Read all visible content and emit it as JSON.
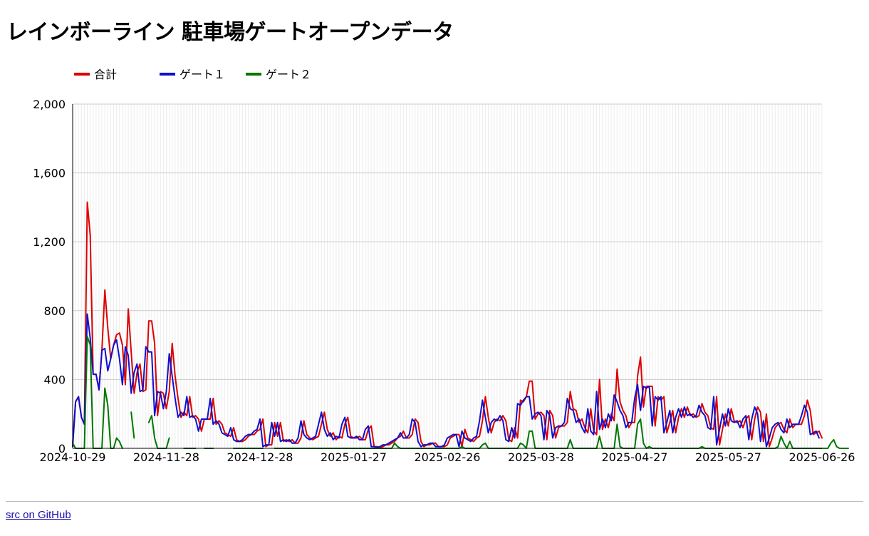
{
  "title": "レインボーライン 駐車場ゲートオープンデータ",
  "footer": {
    "link_text": "src on GitHub"
  },
  "colors": {
    "total": "#dd0000",
    "gate1": "#1010d0",
    "gate2": "#007700"
  },
  "chart_data": {
    "type": "line",
    "title": "レインボーライン 駐車場ゲートオープンデータ",
    "xlabel": "",
    "ylabel": "",
    "x_start": "2024-10-29",
    "x_end": "2025-06-26",
    "x_ticks": [
      "2024-10-29",
      "2024-11-28",
      "2024-12-28",
      "2025-01-27",
      "2025-02-26",
      "2025-03-28",
      "2025-04-27",
      "2025-05-27",
      "2025-06-26"
    ],
    "ylim": [
      0,
      2000
    ],
    "y_ticks": [
      0,
      400,
      800,
      1200,
      1600,
      2000
    ],
    "y_tick_labels": [
      "0",
      "400",
      "800",
      "1,200",
      "1,600",
      "2,000"
    ],
    "grid": true,
    "legend": "top-left",
    "series": [
      {
        "name": "合計",
        "color": "#dd0000",
        "values": [
          30,
          270,
          300,
          180,
          140,
          1430,
          1240,
          430,
          430,
          340,
          570,
          920,
          700,
          520,
          600,
          660,
          670,
          600,
          370,
          810,
          560,
          320,
          440,
          490,
          330,
          340,
          740,
          740,
          610,
          190,
          330,
          320,
          230,
          330,
          610,
          420,
          290,
          180,
          210,
          190,
          300,
          180,
          190,
          170,
          100,
          170,
          170,
          170,
          290,
          140,
          160,
          140,
          90,
          80,
          70,
          120,
          50,
          40,
          40,
          50,
          70,
          80,
          80,
          100,
          110,
          170,
          10,
          20,
          20,
          150,
          70,
          150,
          40,
          50,
          40,
          50,
          30,
          30,
          60,
          160,
          80,
          60,
          50,
          60,
          70,
          140,
          210,
          110,
          70,
          90,
          50,
          70,
          60,
          140,
          180,
          70,
          60,
          60,
          70,
          50,
          50,
          110,
          130,
          10,
          10,
          5,
          10,
          20,
          20,
          30,
          40,
          60,
          70,
          100,
          60,
          60,
          80,
          170,
          150,
          40,
          10,
          20,
          20,
          30,
          30,
          10,
          10,
          10,
          20,
          60,
          70,
          80,
          80,
          10,
          110,
          60,
          50,
          40,
          60,
          70,
          160,
          300,
          180,
          90,
          150,
          170,
          160,
          190,
          160,
          50,
          40,
          120,
          60,
          280,
          270,
          300,
          390,
          390,
          170,
          200,
          210,
          190,
          50,
          220,
          190,
          60,
          120,
          130,
          130,
          150,
          330,
          230,
          220,
          150,
          170,
          120,
          90,
          230,
          100,
          80,
          400,
          110,
          170,
          120,
          200,
          160,
          460,
          270,
          220,
          190,
          120,
          150,
          150,
          420,
          530,
          240,
          360,
          360,
          360,
          130,
          300,
          280,
          300,
          90,
          150,
          220,
          90,
          180,
          230,
          180,
          240,
          190,
          200,
          180,
          190,
          260,
          210,
          190,
          120,
          110,
          300,
          20,
          110,
          200,
          130,
          230,
          160,
          150,
          160,
          120,
          170,
          190,
          50,
          170,
          240,
          210,
          40,
          200,
          10,
          60,
          120,
          140,
          150,
          110,
          90,
          170,
          120,
          140,
          140,
          140,
          190,
          280,
          220,
          80,
          90,
          100,
          60
        ]
      },
      {
        "name": "ゲート１",
        "color": "#1010d0",
        "values": [
          10,
          270,
          300,
          180,
          140,
          780,
          640,
          430,
          430,
          340,
          570,
          580,
          450,
          520,
          600,
          630,
          520,
          370,
          590,
          540,
          320,
          440,
          490,
          330,
          340,
          590,
          560,
          560,
          190,
          330,
          320,
          230,
          330,
          550,
          420,
          290,
          180,
          210,
          190,
          300,
          180,
          190,
          170,
          100,
          170,
          170,
          170,
          290,
          140,
          160,
          140,
          90,
          80,
          70,
          120,
          50,
          40,
          40,
          50,
          70,
          80,
          80,
          100,
          110,
          170,
          10,
          20,
          20,
          150,
          70,
          150,
          40,
          50,
          40,
          50,
          30,
          30,
          60,
          160,
          80,
          60,
          50,
          60,
          70,
          140,
          210,
          110,
          70,
          90,
          50,
          70,
          60,
          140,
          180,
          70,
          60,
          60,
          70,
          50,
          50,
          110,
          130,
          10,
          10,
          5,
          10,
          20,
          20,
          30,
          40,
          50,
          60,
          90,
          60,
          60,
          80,
          170,
          150,
          40,
          10,
          20,
          20,
          30,
          30,
          10,
          10,
          10,
          20,
          60,
          70,
          80,
          80,
          10,
          100,
          60,
          50,
          40,
          60,
          70,
          160,
          280,
          180,
          90,
          150,
          170,
          160,
          190,
          160,
          50,
          40,
          120,
          60,
          260,
          250,
          280,
          300,
          300,
          170,
          200,
          210,
          190,
          50,
          220,
          190,
          60,
          120,
          130,
          130,
          150,
          290,
          230,
          220,
          150,
          170,
          120,
          90,
          230,
          100,
          80,
          330,
          110,
          170,
          120,
          200,
          160,
          310,
          270,
          220,
          190,
          120,
          150,
          150,
          290,
          370,
          220,
          360,
          350,
          360,
          130,
          300,
          280,
          300,
          90,
          150,
          220,
          90,
          180,
          230,
          180,
          240,
          190,
          200,
          180,
          190,
          250,
          210,
          190,
          120,
          110,
          300,
          20,
          110,
          200,
          130,
          230,
          160,
          150,
          160,
          120,
          170,
          190,
          50,
          170,
          240,
          200,
          40,
          160,
          10,
          60,
          120,
          140,
          150,
          110,
          90,
          170,
          120,
          140,
          140,
          140,
          190,
          250,
          210,
          80,
          90,
          100,
          60
        ]
      },
      {
        "name": "ゲート２",
        "color": "#007700",
        "values": [
          30,
          0,
          0,
          0,
          0,
          650,
          600,
          0,
          0,
          0,
          0,
          350,
          250,
          0,
          0,
          60,
          40,
          0,
          null,
          null,
          210,
          60,
          null,
          null,
          null,
          null,
          150,
          190,
          60,
          0,
          0,
          0,
          0,
          60,
          null,
          null,
          null,
          null,
          0,
          0,
          0,
          0,
          0,
          null,
          null,
          0,
          0,
          0,
          0,
          null,
          null,
          null,
          null,
          null,
          null,
          0,
          0,
          0,
          0,
          0,
          0,
          0,
          0,
          0,
          0,
          0,
          null,
          null,
          null,
          0,
          0,
          0,
          0,
          0,
          0,
          0,
          0,
          0,
          0,
          0,
          0,
          0,
          0,
          0,
          0,
          0,
          0,
          0,
          0,
          0,
          0,
          0,
          0,
          0,
          0,
          0,
          0,
          0,
          0,
          0,
          0,
          0,
          0,
          0,
          0,
          0,
          0,
          0,
          0,
          0,
          30,
          10,
          0,
          0,
          0,
          0,
          0,
          0,
          0,
          0,
          0,
          0,
          0,
          0,
          0,
          0,
          0,
          0,
          0,
          0,
          0,
          0,
          0,
          10,
          0,
          0,
          0,
          0,
          0,
          0,
          20,
          30,
          0,
          0,
          0,
          0,
          0,
          0,
          0,
          0,
          0,
          0,
          0,
          30,
          20,
          0,
          100,
          100,
          0,
          0,
          0,
          0,
          0,
          0,
          0,
          0,
          0,
          0,
          0,
          0,
          50,
          0,
          0,
          0,
          0,
          0,
          0,
          0,
          0,
          0,
          70,
          0,
          0,
          0,
          0,
          0,
          140,
          10,
          0,
          0,
          0,
          0,
          0,
          140,
          170,
          30,
          0,
          10,
          0,
          0,
          0,
          0,
          0,
          0,
          0,
          0,
          0,
          0,
          0,
          0,
          0,
          0,
          0,
          0,
          0,
          10,
          0,
          0,
          0,
          0,
          0,
          0,
          0,
          0,
          0,
          0,
          0,
          0,
          0,
          0,
          0,
          0,
          0,
          0,
          0,
          0,
          0,
          0,
          0,
          0,
          0,
          10,
          70,
          30,
          0,
          40,
          0,
          0,
          0,
          0,
          0,
          0,
          0,
          0,
          0,
          0,
          0,
          0,
          0,
          30,
          50,
          10,
          0,
          0,
          0,
          0
        ]
      }
    ]
  }
}
